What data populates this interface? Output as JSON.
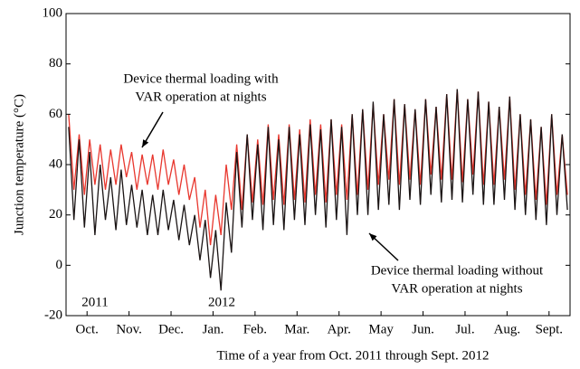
{
  "chart_data": {
    "type": "line",
    "xlabel": "Time of a year from Oct. 2011 through Sept. 2012",
    "ylabel": "Junction temperature (°C)",
    "xlim": [
      0,
      12
    ],
    "xticks": [
      {
        "value": 0.5,
        "label": "Oct."
      },
      {
        "value": 1.5,
        "label": "Nov."
      },
      {
        "value": 2.5,
        "label": "Dec."
      },
      {
        "value": 3.5,
        "label": "Jan."
      },
      {
        "value": 4.5,
        "label": "Feb."
      },
      {
        "value": 5.5,
        "label": "Mar."
      },
      {
        "value": 6.5,
        "label": "Apr."
      },
      {
        "value": 7.5,
        "label": "May"
      },
      {
        "value": 8.5,
        "label": "Jun."
      },
      {
        "value": 9.5,
        "label": "Jul."
      },
      {
        "value": 10.5,
        "label": "Aug."
      },
      {
        "value": 11.5,
        "label": "Sept."
      }
    ],
    "ylim": [
      -20,
      100
    ],
    "yticks": [
      -20,
      0,
      20,
      40,
      60,
      80,
      100
    ],
    "year_labels": [
      "2011",
      "2012"
    ],
    "annotations": [
      {
        "lines": [
          "Device thermal loading with",
          "VAR operation at nights"
        ]
      },
      {
        "lines": [
          "Device thermal loading without",
          "VAR operation at nights"
        ]
      }
    ],
    "x": [
      0.0625,
      0.1875,
      0.3125,
      0.4375,
      0.5625,
      0.6875,
      0.8125,
      0.9375,
      1.0625,
      1.1875,
      1.3125,
      1.4375,
      1.5625,
      1.6875,
      1.8125,
      1.9375,
      2.0625,
      2.1875,
      2.3125,
      2.4375,
      2.5625,
      2.6875,
      2.8125,
      2.9375,
      3.0625,
      3.1875,
      3.3125,
      3.4375,
      3.5625,
      3.6875,
      3.8125,
      3.9375,
      4.0625,
      4.1875,
      4.3125,
      4.4375,
      4.5625,
      4.6875,
      4.8125,
      4.9375,
      5.0625,
      5.1875,
      5.3125,
      5.4375,
      5.5625,
      5.6875,
      5.8125,
      5.9375,
      6.0625,
      6.1875,
      6.3125,
      6.4375,
      6.5625,
      6.6875,
      6.8125,
      6.9375,
      7.0625,
      7.1875,
      7.3125,
      7.4375,
      7.5625,
      7.6875,
      7.8125,
      7.9375,
      8.0625,
      8.1875,
      8.3125,
      8.4375,
      8.5625,
      8.6875,
      8.8125,
      8.9375,
      9.0625,
      9.1875,
      9.3125,
      9.4375,
      9.5625,
      9.6875,
      9.8125,
      9.9375,
      10.0625,
      10.1875,
      10.3125,
      10.4375,
      10.5625,
      10.6875,
      10.8125,
      10.9375,
      11.0625,
      11.1875,
      11.3125,
      11.4375,
      11.5625,
      11.6875,
      11.8125,
      11.9375
    ],
    "series": [
      {
        "color": "#e8372e",
        "values": [
          60,
          30,
          52,
          28,
          50,
          32,
          48,
          30,
          46,
          32,
          48,
          35,
          45,
          30,
          44,
          32,
          44,
          30,
          46,
          32,
          42,
          28,
          40,
          26,
          35,
          15,
          30,
          8,
          28,
          12,
          40,
          22,
          48,
          22,
          52,
          25,
          50,
          24,
          56,
          26,
          52,
          24,
          56,
          26,
          54,
          25,
          58,
          28,
          56,
          25,
          58,
          28,
          56,
          26,
          60,
          28,
          62,
          30,
          64,
          32,
          60,
          34,
          66,
          32,
          64,
          34,
          62,
          32,
          66,
          36,
          63,
          34,
          68,
          34,
          70,
          33,
          66,
          36,
          69,
          32,
          65,
          32,
          63,
          34,
          67,
          30,
          60,
          28,
          58,
          26,
          55,
          24,
          60,
          28,
          52,
          28
        ]
      },
      {
        "color": "#1a1414",
        "values": [
          55,
          18,
          50,
          15,
          45,
          12,
          40,
          18,
          35,
          14,
          38,
          16,
          32,
          15,
          30,
          12,
          28,
          12,
          30,
          14,
          26,
          10,
          24,
          8,
          20,
          2,
          18,
          -5,
          14,
          -10,
          25,
          5,
          45,
          15,
          52,
          18,
          48,
          14,
          55,
          16,
          50,
          14,
          55,
          18,
          52,
          16,
          56,
          20,
          54,
          15,
          58,
          18,
          55,
          12,
          60,
          20,
          62,
          20,
          65,
          22,
          60,
          24,
          66,
          22,
          64,
          26,
          62,
          24,
          66,
          28,
          63,
          25,
          68,
          26,
          70,
          25,
          66,
          28,
          69,
          24,
          65,
          24,
          63,
          26,
          67,
          22,
          60,
          20,
          58,
          18,
          55,
          16,
          60,
          20,
          52,
          22
        ]
      }
    ]
  }
}
